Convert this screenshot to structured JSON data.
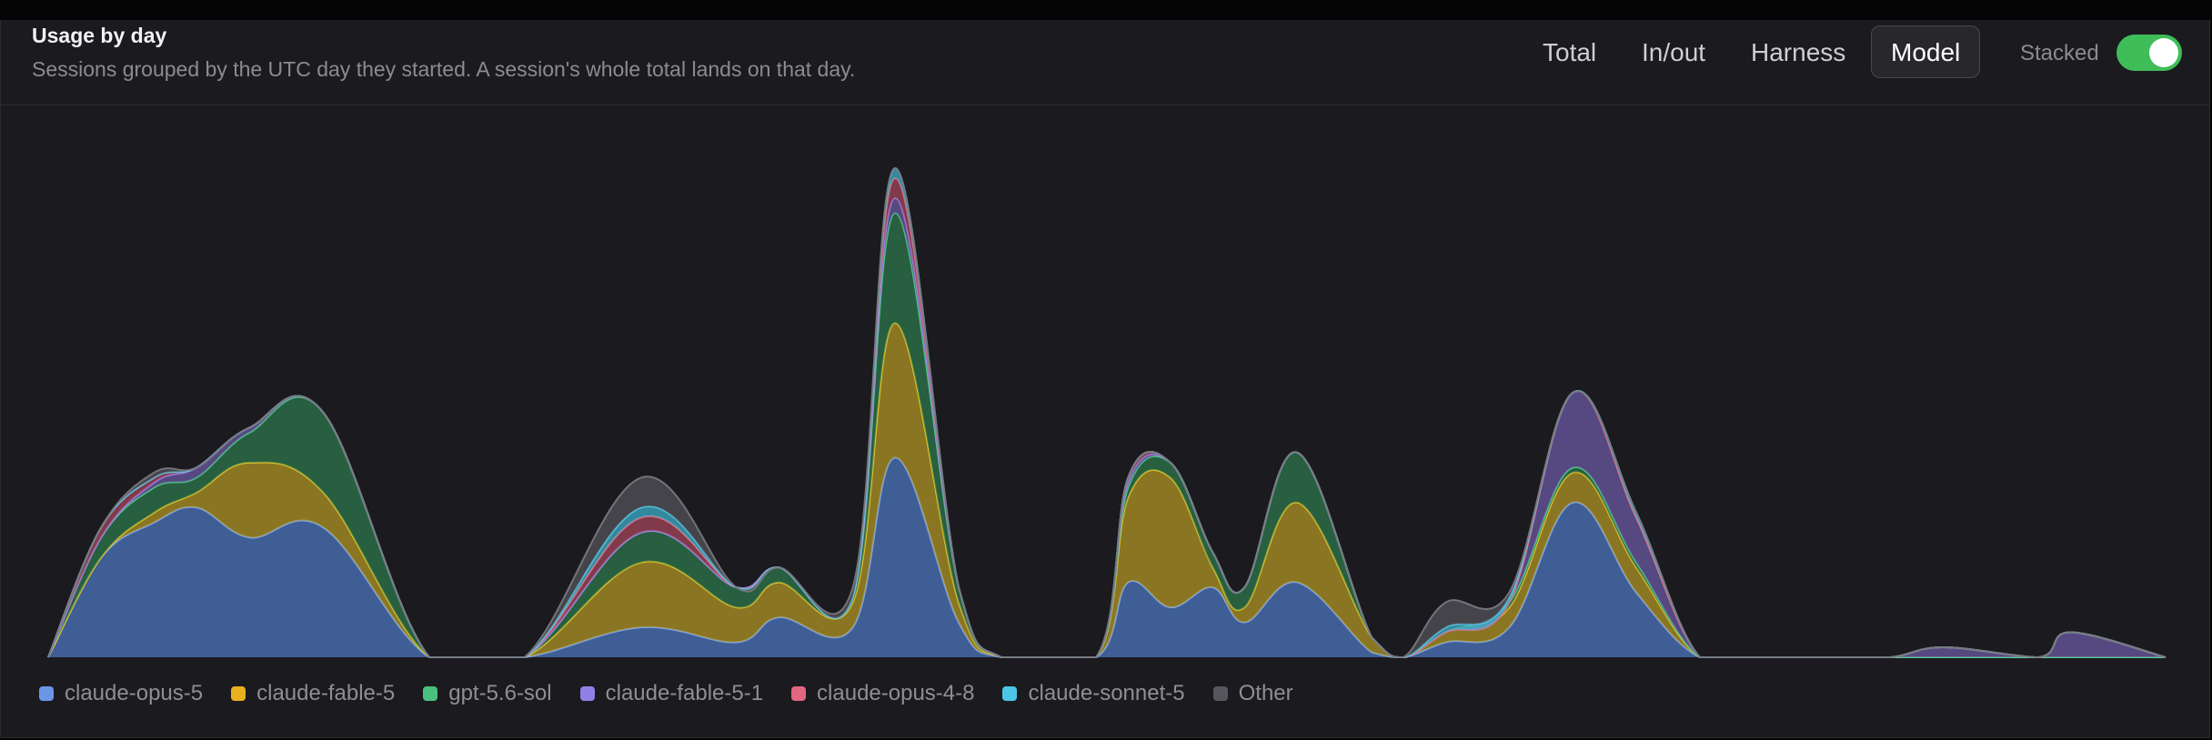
{
  "header": {
    "title": "Usage by day",
    "subtitle": "Sessions grouped by the UTC day they started. A session's whole total lands on that day.",
    "tabs": [
      {
        "label": "Total",
        "active": false
      },
      {
        "label": "In/out",
        "active": false
      },
      {
        "label": "Harness",
        "active": false
      },
      {
        "label": "Model",
        "active": true
      }
    ],
    "stacked_label": "Stacked",
    "stacked_on": true
  },
  "chart_data": {
    "type": "area",
    "stacked": true,
    "ylim": [
      0,
      1
    ],
    "x": [
      0,
      2.5,
      5,
      7,
      9.5,
      13,
      18,
      22.5,
      28,
      32.5,
      34.5,
      38,
      40,
      43,
      45,
      49.5,
      51,
      53,
      55,
      56.5,
      59,
      62.5,
      64,
      66,
      69,
      72,
      75,
      78,
      81,
      84,
      87,
      89.5,
      94,
      95.5,
      100
    ],
    "series": [
      {
        "name": "claude-opus-5",
        "color": "#4d78c4",
        "values": [
          0,
          0.2,
          0.27,
          0.3,
          0.24,
          0.26,
          0,
          0,
          0.06,
          0.03,
          0.08,
          0.06,
          0.4,
          0.07,
          0,
          0,
          0.15,
          0.1,
          0.14,
          0.07,
          0.15,
          0.01,
          0,
          0.03,
          0.06,
          0.31,
          0.13,
          0,
          0,
          0,
          0,
          0,
          0,
          0,
          0
        ]
      },
      {
        "name": "claude-fable-5",
        "color": "#b69a24",
        "values": [
          0,
          0,
          0.02,
          0.03,
          0.15,
          0.07,
          0,
          0,
          0.13,
          0.07,
          0.07,
          0.05,
          0.27,
          0.04,
          0,
          0,
          0.17,
          0.26,
          0.04,
          0.03,
          0.16,
          0.03,
          0,
          0.02,
          0.04,
          0.06,
          0.05,
          0,
          0,
          0,
          0,
          0,
          0,
          0,
          0
        ]
      },
      {
        "name": "gpt-5.6-sol",
        "color": "#2c7a4d",
        "values": [
          0,
          0.04,
          0.05,
          0.03,
          0.06,
          0.16,
          0,
          0,
          0.06,
          0.04,
          0.03,
          0.01,
          0.22,
          0.03,
          0,
          0,
          0.02,
          0.03,
          0.03,
          0.04,
          0.1,
          0,
          0,
          0,
          0.01,
          0.01,
          0.01,
          0,
          0,
          0,
          0,
          0,
          0,
          0,
          0
        ]
      },
      {
        "name": "claude-fable-5-1",
        "color": "#6d5aa8",
        "values": [
          0,
          0,
          0.01,
          0.02,
          0.01,
          0,
          0,
          0,
          0,
          0,
          0,
          0,
          0.03,
          0,
          0,
          0,
          0.01,
          0,
          0,
          0,
          0,
          0,
          0,
          0,
          0,
          0.15,
          0.09,
          0,
          0,
          0,
          0,
          0.02,
          0,
          0.05,
          0
        ]
      },
      {
        "name": "claude-opus-4-8",
        "color": "#a8475c",
        "values": [
          0,
          0.02,
          0.01,
          0,
          0,
          0,
          0,
          0,
          0.03,
          0,
          0,
          0,
          0.04,
          0,
          0,
          0,
          0.01,
          0,
          0,
          0,
          0,
          0,
          0,
          0,
          0,
          0,
          0,
          0,
          0,
          0,
          0,
          0,
          0,
          0,
          0
        ]
      },
      {
        "name": "claude-sonnet-5",
        "color": "#3fb3cf",
        "values": [
          0,
          0,
          0,
          0,
          0,
          0,
          0,
          0,
          0.02,
          0,
          0,
          0,
          0.02,
          0,
          0,
          0,
          0,
          0,
          0,
          0,
          0,
          0,
          0,
          0.01,
          0.01,
          0,
          0.01,
          0,
          0,
          0,
          0,
          0,
          0,
          0,
          0
        ]
      },
      {
        "name": "Other",
        "color": "#55555b",
        "values": [
          0,
          0,
          0.01,
          0,
          0,
          0,
          0,
          0,
          0.06,
          0,
          0,
          0.02,
          0,
          0,
          0,
          0,
          0,
          0,
          0,
          0,
          0,
          0,
          0,
          0.05,
          0.01,
          0,
          0,
          0,
          0,
          0,
          0,
          0,
          0,
          0,
          0
        ]
      }
    ],
    "legend_position": "bottom",
    "grid": false
  }
}
